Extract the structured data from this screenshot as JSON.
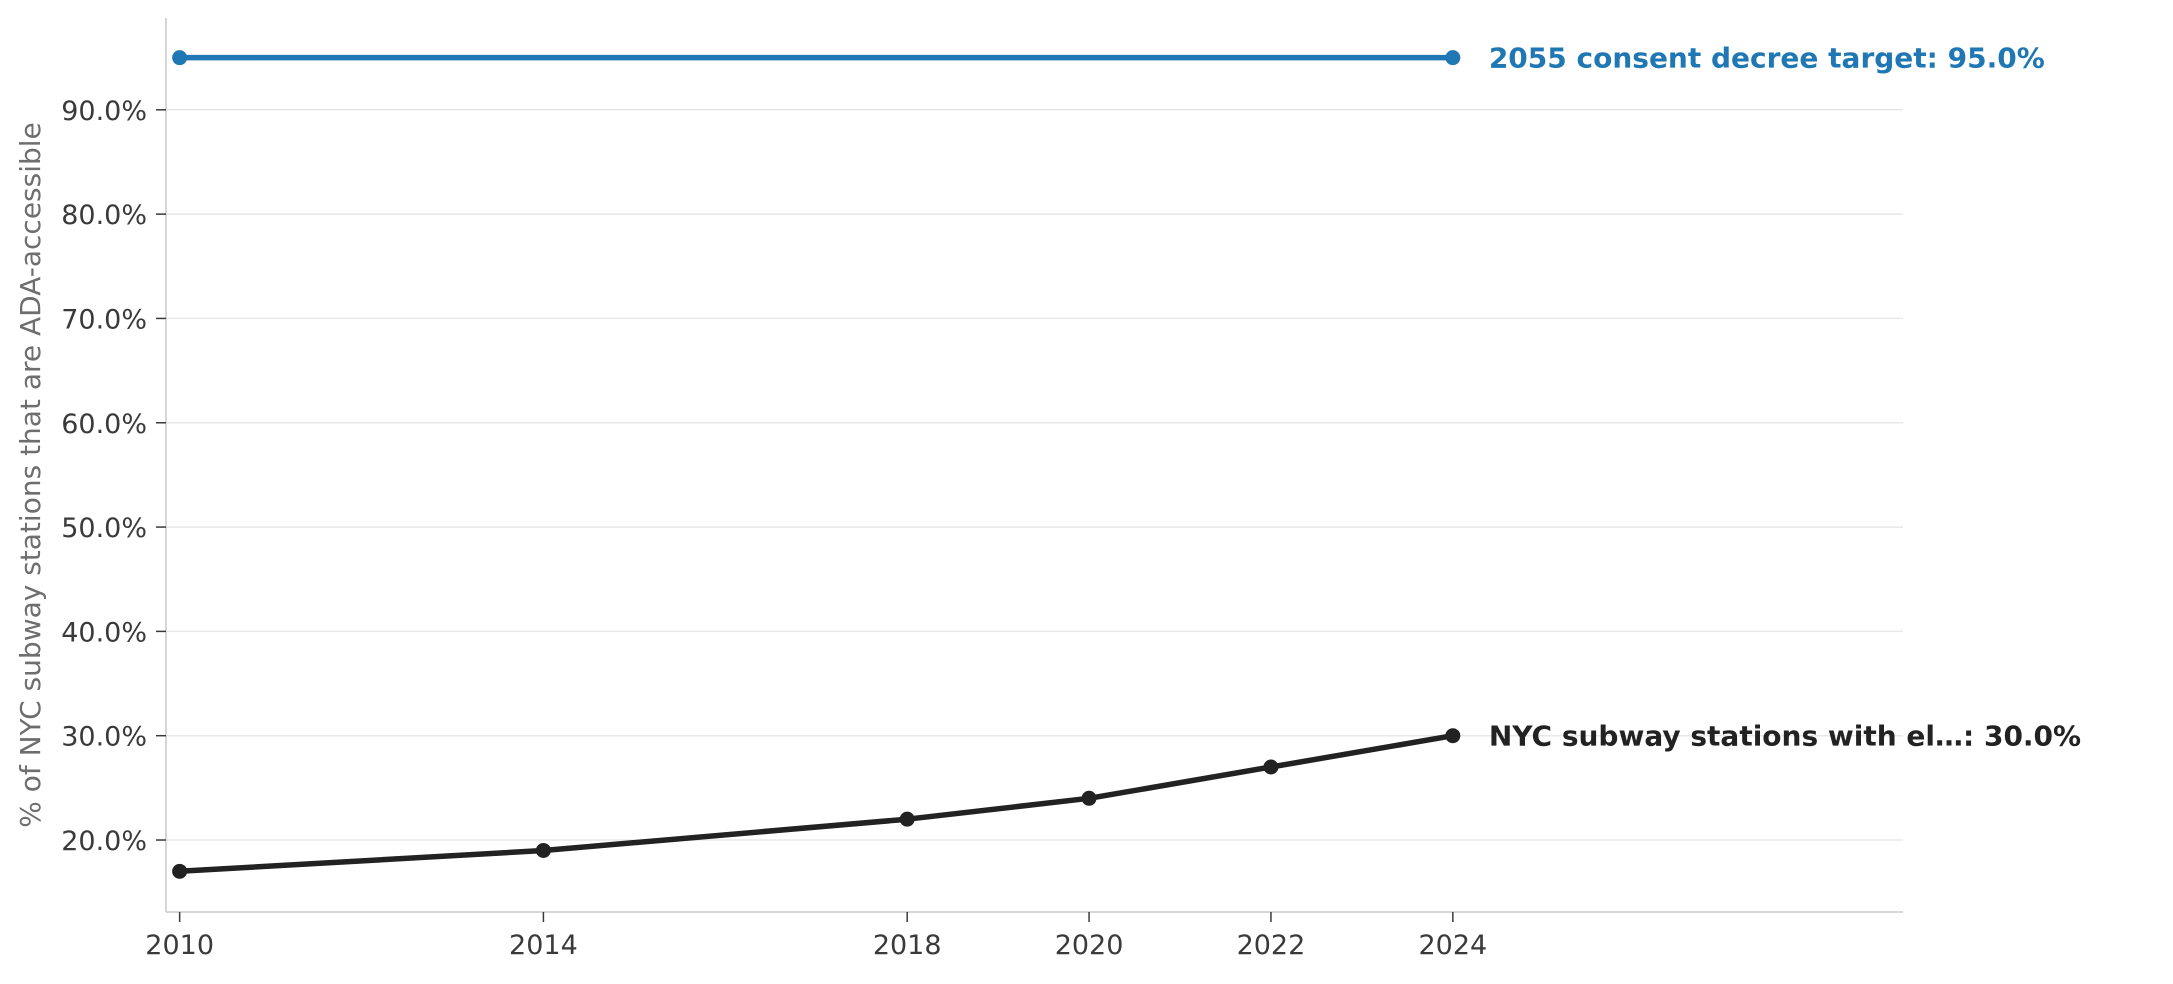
{
  "chart_data": {
    "type": "line",
    "title": "",
    "xlabel": "",
    "ylabel": "% of NYC subway stations that are ADA-accessible",
    "x_ticks": [
      2010,
      2014,
      2018,
      2020,
      2022,
      2024
    ],
    "x_tick_labels": [
      "2010",
      "2014",
      "2018",
      "2020",
      "2022",
      "2024"
    ],
    "y_ticks": [
      20,
      30,
      40,
      50,
      60,
      70,
      80,
      90
    ],
    "y_tick_labels": [
      "20.0%",
      "30.0%",
      "40.0%",
      "50.0%",
      "60.0%",
      "70.0%",
      "80.0%",
      "90.0%"
    ],
    "xlim": [
      2009.85,
      2028.95
    ],
    "ylim": [
      13.1,
      98.8
    ],
    "grid": "horizontal",
    "legend": "none",
    "series": [
      {
        "key": "accessible",
        "x": [
          2010,
          2014,
          2018,
          2020,
          2022,
          2024
        ],
        "values": [
          17,
          19,
          22,
          24,
          27,
          30
        ],
        "color": "#222222",
        "end_label": "NYC subway stations with el…: 30.0%"
      },
      {
        "key": "target",
        "x": [
          2010,
          2024
        ],
        "values": [
          95,
          95
        ],
        "color": "#1f77b4",
        "end_label": "2055 consent decree target: 95.0%"
      }
    ]
  }
}
